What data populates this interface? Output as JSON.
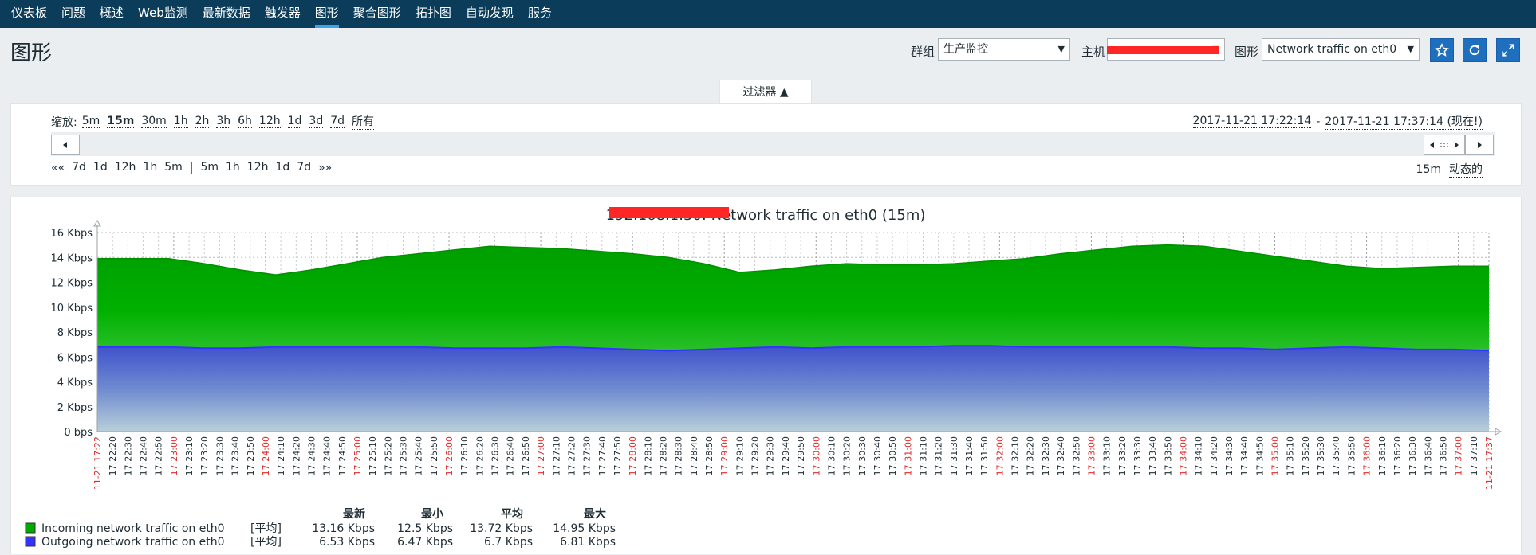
{
  "nav": {
    "items": [
      {
        "label": "仪表板",
        "active": false
      },
      {
        "label": "问题",
        "active": false
      },
      {
        "label": "概述",
        "active": false
      },
      {
        "label": "Web监测",
        "active": false
      },
      {
        "label": "最新数据",
        "active": false
      },
      {
        "label": "触发器",
        "active": false
      },
      {
        "label": "图形",
        "active": true
      },
      {
        "label": "聚合图形",
        "active": false
      },
      {
        "label": "拓扑图",
        "active": false
      },
      {
        "label": "自动发现",
        "active": false
      },
      {
        "label": "服务",
        "active": false
      }
    ]
  },
  "header": {
    "title": "图形",
    "group_label": "群组",
    "group_value": "生产监控",
    "host_label": "主机",
    "graph_label": "图形",
    "graph_value": "Network traffic on eth0",
    "buttons": {
      "favorite_icon": "star-icon",
      "refresh_icon": "refresh-icon",
      "fullscreen_icon": "fullscreen-icon"
    }
  },
  "filter": {
    "tab_label": "过滤器 ▲",
    "zoom_label": "缩放:",
    "zoom_options": [
      {
        "label": "5m",
        "active": false
      },
      {
        "label": "15m",
        "active": true
      },
      {
        "label": "30m",
        "active": false
      },
      {
        "label": "1h",
        "active": false
      },
      {
        "label": "2h",
        "active": false
      },
      {
        "label": "3h",
        "active": false
      },
      {
        "label": "6h",
        "active": false
      },
      {
        "label": "12h",
        "active": false
      },
      {
        "label": "1d",
        "active": false
      },
      {
        "label": "3d",
        "active": false
      },
      {
        "label": "7d",
        "active": false
      },
      {
        "label": "所有",
        "active": false
      }
    ],
    "period_start": "2017-11-21 17:22:14",
    "period_sep": "-",
    "period_end": "2017-11-21 17:37:14 (现在!)",
    "back_start": "««",
    "back_steps": [
      "7d",
      "1d",
      "12h",
      "1h",
      "5m"
    ],
    "divider": "|",
    "fwd_steps": [
      "5m",
      "1h",
      "12h",
      "1d",
      "7d"
    ],
    "fwd_end": "»»",
    "period_value": "15m",
    "dynamic_label": "动态的"
  },
  "chart_data": {
    "type": "area",
    "title": "192.168.1.30: Network traffic on eth0 (15m)",
    "ylim": [
      0,
      16
    ],
    "y_unit": "Kbps",
    "y_ticks": [
      "16 Kbps",
      "14 Kbps",
      "12 Kbps",
      "10 Kbps",
      "8 Kbps",
      "6 Kbps",
      "4 Kbps",
      "2 Kbps",
      "0 bps"
    ],
    "x_labels": [
      {
        "t": "11-21 17:22",
        "red": true
      },
      {
        "t": "17:22:20",
        "red": false
      },
      {
        "t": "17:22:30",
        "red": false
      },
      {
        "t": "17:22:40",
        "red": false
      },
      {
        "t": "17:22:50",
        "red": false
      },
      {
        "t": "17:23:00",
        "red": true
      },
      {
        "t": "17:23:10",
        "red": false
      },
      {
        "t": "17:23:20",
        "red": false
      },
      {
        "t": "17:23:30",
        "red": false
      },
      {
        "t": "17:23:40",
        "red": false
      },
      {
        "t": "17:23:50",
        "red": false
      },
      {
        "t": "17:24:00",
        "red": true
      },
      {
        "t": "17:24:10",
        "red": false
      },
      {
        "t": "17:24:20",
        "red": false
      },
      {
        "t": "17:24:30",
        "red": false
      },
      {
        "t": "17:24:40",
        "red": false
      },
      {
        "t": "17:24:50",
        "red": false
      },
      {
        "t": "17:25:00",
        "red": true
      },
      {
        "t": "17:25:10",
        "red": false
      },
      {
        "t": "17:25:20",
        "red": false
      },
      {
        "t": "17:25:30",
        "red": false
      },
      {
        "t": "17:25:40",
        "red": false
      },
      {
        "t": "17:25:50",
        "red": false
      },
      {
        "t": "17:26:00",
        "red": true
      },
      {
        "t": "17:26:10",
        "red": false
      },
      {
        "t": "17:26:20",
        "red": false
      },
      {
        "t": "17:26:30",
        "red": false
      },
      {
        "t": "17:26:40",
        "red": false
      },
      {
        "t": "17:26:50",
        "red": false
      },
      {
        "t": "17:27:00",
        "red": true
      },
      {
        "t": "17:27:10",
        "red": false
      },
      {
        "t": "17:27:20",
        "red": false
      },
      {
        "t": "17:27:30",
        "red": false
      },
      {
        "t": "17:27:40",
        "red": false
      },
      {
        "t": "17:27:50",
        "red": false
      },
      {
        "t": "17:28:00",
        "red": true
      },
      {
        "t": "17:28:10",
        "red": false
      },
      {
        "t": "17:28:20",
        "red": false
      },
      {
        "t": "17:28:30",
        "red": false
      },
      {
        "t": "17:28:40",
        "red": false
      },
      {
        "t": "17:28:50",
        "red": false
      },
      {
        "t": "17:29:00",
        "red": true
      },
      {
        "t": "17:29:10",
        "red": false
      },
      {
        "t": "17:29:20",
        "red": false
      },
      {
        "t": "17:29:30",
        "red": false
      },
      {
        "t": "17:29:40",
        "red": false
      },
      {
        "t": "17:29:50",
        "red": false
      },
      {
        "t": "17:30:00",
        "red": true
      },
      {
        "t": "17:30:10",
        "red": false
      },
      {
        "t": "17:30:20",
        "red": false
      },
      {
        "t": "17:30:30",
        "red": false
      },
      {
        "t": "17:30:40",
        "red": false
      },
      {
        "t": "17:30:50",
        "red": false
      },
      {
        "t": "17:31:00",
        "red": true
      },
      {
        "t": "17:31:10",
        "red": false
      },
      {
        "t": "17:31:20",
        "red": false
      },
      {
        "t": "17:31:30",
        "red": false
      },
      {
        "t": "17:31:40",
        "red": false
      },
      {
        "t": "17:31:50",
        "red": false
      },
      {
        "t": "17:32:00",
        "red": true
      },
      {
        "t": "17:32:10",
        "red": false
      },
      {
        "t": "17:32:20",
        "red": false
      },
      {
        "t": "17:32:30",
        "red": false
      },
      {
        "t": "17:32:40",
        "red": false
      },
      {
        "t": "17:32:50",
        "red": false
      },
      {
        "t": "17:33:00",
        "red": true
      },
      {
        "t": "17:33:10",
        "red": false
      },
      {
        "t": "17:33:20",
        "red": false
      },
      {
        "t": "17:33:30",
        "red": false
      },
      {
        "t": "17:33:40",
        "red": false
      },
      {
        "t": "17:33:50",
        "red": false
      },
      {
        "t": "17:34:00",
        "red": true
      },
      {
        "t": "17:34:10",
        "red": false
      },
      {
        "t": "17:34:20",
        "red": false
      },
      {
        "t": "17:34:30",
        "red": false
      },
      {
        "t": "17:34:40",
        "red": false
      },
      {
        "t": "17:34:50",
        "red": false
      },
      {
        "t": "17:35:00",
        "red": true
      },
      {
        "t": "17:35:10",
        "red": false
      },
      {
        "t": "17:35:20",
        "red": false
      },
      {
        "t": "17:35:30",
        "red": false
      },
      {
        "t": "17:35:40",
        "red": false
      },
      {
        "t": "17:35:50",
        "red": false
      },
      {
        "t": "17:36:00",
        "red": true
      },
      {
        "t": "17:36:10",
        "red": false
      },
      {
        "t": "17:36:20",
        "red": false
      },
      {
        "t": "17:36:30",
        "red": false
      },
      {
        "t": "17:36:40",
        "red": false
      },
      {
        "t": "17:36:50",
        "red": false
      },
      {
        "t": "17:37:00",
        "red": true
      },
      {
        "t": "17:37:10",
        "red": false
      },
      {
        "t": "11-21 17:37",
        "red": true
      }
    ],
    "series": [
      {
        "name": "Incoming network traffic on eth0",
        "color": "#00aa00",
        "values": [
          13.9,
          13.9,
          13.9,
          13.5,
          13.0,
          12.6,
          13.0,
          13.5,
          14.0,
          14.3,
          14.6,
          14.9,
          14.8,
          14.7,
          14.5,
          14.3,
          14.0,
          13.5,
          12.8,
          13.0,
          13.3,
          13.5,
          13.4,
          13.4,
          13.5,
          13.7,
          13.9,
          14.3,
          14.6,
          14.9,
          15.0,
          14.9,
          14.5,
          14.1,
          13.7,
          13.3,
          13.1,
          13.2,
          13.3,
          13.3
        ],
        "summary": {
          "type": "[平均]",
          "last": "13.16 Kbps",
          "min": "12.5 Kbps",
          "avg": "13.72 Kbps",
          "max": "14.95 Kbps"
        }
      },
      {
        "name": "Outgoing network traffic on eth0",
        "color": "#3333ff",
        "values": [
          6.8,
          6.8,
          6.8,
          6.7,
          6.7,
          6.8,
          6.8,
          6.8,
          6.8,
          6.8,
          6.7,
          6.7,
          6.7,
          6.8,
          6.7,
          6.6,
          6.5,
          6.6,
          6.7,
          6.8,
          6.7,
          6.8,
          6.8,
          6.8,
          6.9,
          6.9,
          6.8,
          6.8,
          6.8,
          6.8,
          6.8,
          6.7,
          6.7,
          6.6,
          6.7,
          6.8,
          6.7,
          6.6,
          6.6,
          6.5
        ],
        "summary": {
          "type": "[平均]",
          "last": "6.53 Kbps",
          "min": "6.47 Kbps",
          "avg": "6.7 Kbps",
          "max": "6.81 Kbps"
        }
      }
    ],
    "legend_headers": {
      "last": "最新",
      "min": "最小",
      "avg": "平均",
      "max": "最大"
    },
    "legend_position": "bottom-left",
    "grid": true
  }
}
